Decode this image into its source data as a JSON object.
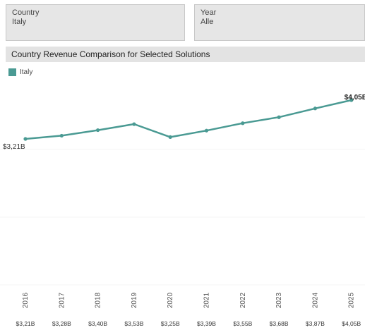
{
  "filters": {
    "country": {
      "label": "Country",
      "value": "Italy"
    },
    "year": {
      "label": "Year",
      "value": "Alle"
    }
  },
  "chart_data": {
    "type": "line",
    "title": "Country Revenue Comparison for Selected Solutions",
    "legend": "top-left",
    "grid": false,
    "x": [
      "2016",
      "2017",
      "2018",
      "2019",
      "2020",
      "2021",
      "2022",
      "2023",
      "2024",
      "2025"
    ],
    "series": [
      {
        "name": "Italy",
        "color": "#4a9a93",
        "values": [
          3.21,
          3.28,
          3.4,
          3.53,
          3.25,
          3.39,
          3.55,
          3.68,
          3.87,
          4.05
        ],
        "labels": [
          "$3,21B",
          "$3,28B",
          "$3,40B",
          "$3,53B",
          "$3,25B",
          "$3,39B",
          "$3,55B",
          "$3,68B",
          "$3,87B",
          "$4,05B"
        ]
      }
    ],
    "point_labels": {
      "first": "$3,21B",
      "last": "$4,05B"
    }
  }
}
